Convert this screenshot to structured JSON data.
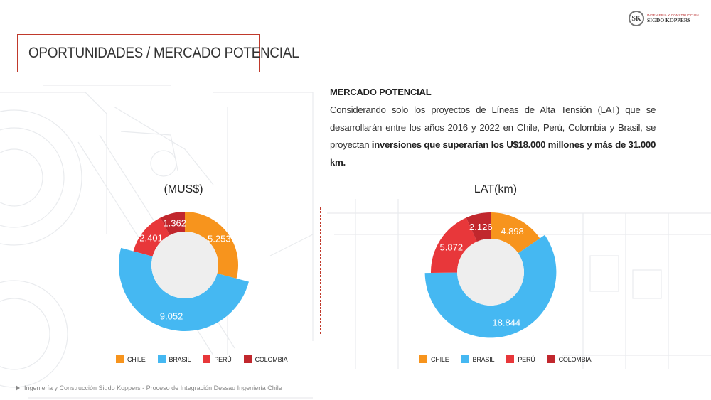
{
  "logo": {
    "mark": "SK",
    "subtitle": "INGENIERIA Y CONSTRUCCION",
    "name": "SIGDO KOPPERS"
  },
  "slide_title": "OPORTUNIDADES / MERCADO POTENCIAL",
  "text": {
    "heading": "MERCADO POTENCIAL",
    "body_plain": "Considerando solo los proyectos de Líneas de Alta Tensión (LAT) que se desarrollarán entre los años 2016 y 2022 en Chile, Perú, Colombia y Brasil, se proyectan ",
    "body_bold": "inversiones que superarían los U$18.000 millones y más de 31.000 km."
  },
  "footer": "Ingeniería y Construcción Sigdo Koppers - Proceso de Integración Dessau Ingeniería Chile",
  "colors": {
    "CHILE": "#f7941d",
    "BRASIL": "#45b8f2",
    "PERÚ": "#e8373a",
    "COLOMBIA": "#c1272d",
    "inner": "#eeeeee"
  },
  "chart_data": [
    {
      "type": "pie",
      "title": "(MUS$)",
      "categories": [
        "CHILE",
        "BRASIL",
        "PERÚ",
        "COLOMBIA"
      ],
      "values": [
        5253,
        9052,
        2401,
        1362
      ],
      "data_labels": [
        "5.253",
        "9.052",
        "2.401",
        "1.362"
      ],
      "legend": [
        "CHILE",
        "BRASIL",
        "PERÚ",
        "COLOMBIA"
      ],
      "legend_position": "bottom",
      "style": "exploded-donut"
    },
    {
      "type": "pie",
      "title": "LAT(km)",
      "categories": [
        "CHILE",
        "BRASIL",
        "PERÚ",
        "COLOMBIA"
      ],
      "values": [
        4898,
        18844,
        5872,
        2126
      ],
      "data_labels": [
        "4.898",
        "18.844",
        "5.872",
        "2.126"
      ],
      "legend": [
        "CHILE",
        "BRASIL",
        "PERÚ",
        "COLOMBIA"
      ],
      "legend_position": "bottom",
      "style": "exploded-donut"
    }
  ]
}
